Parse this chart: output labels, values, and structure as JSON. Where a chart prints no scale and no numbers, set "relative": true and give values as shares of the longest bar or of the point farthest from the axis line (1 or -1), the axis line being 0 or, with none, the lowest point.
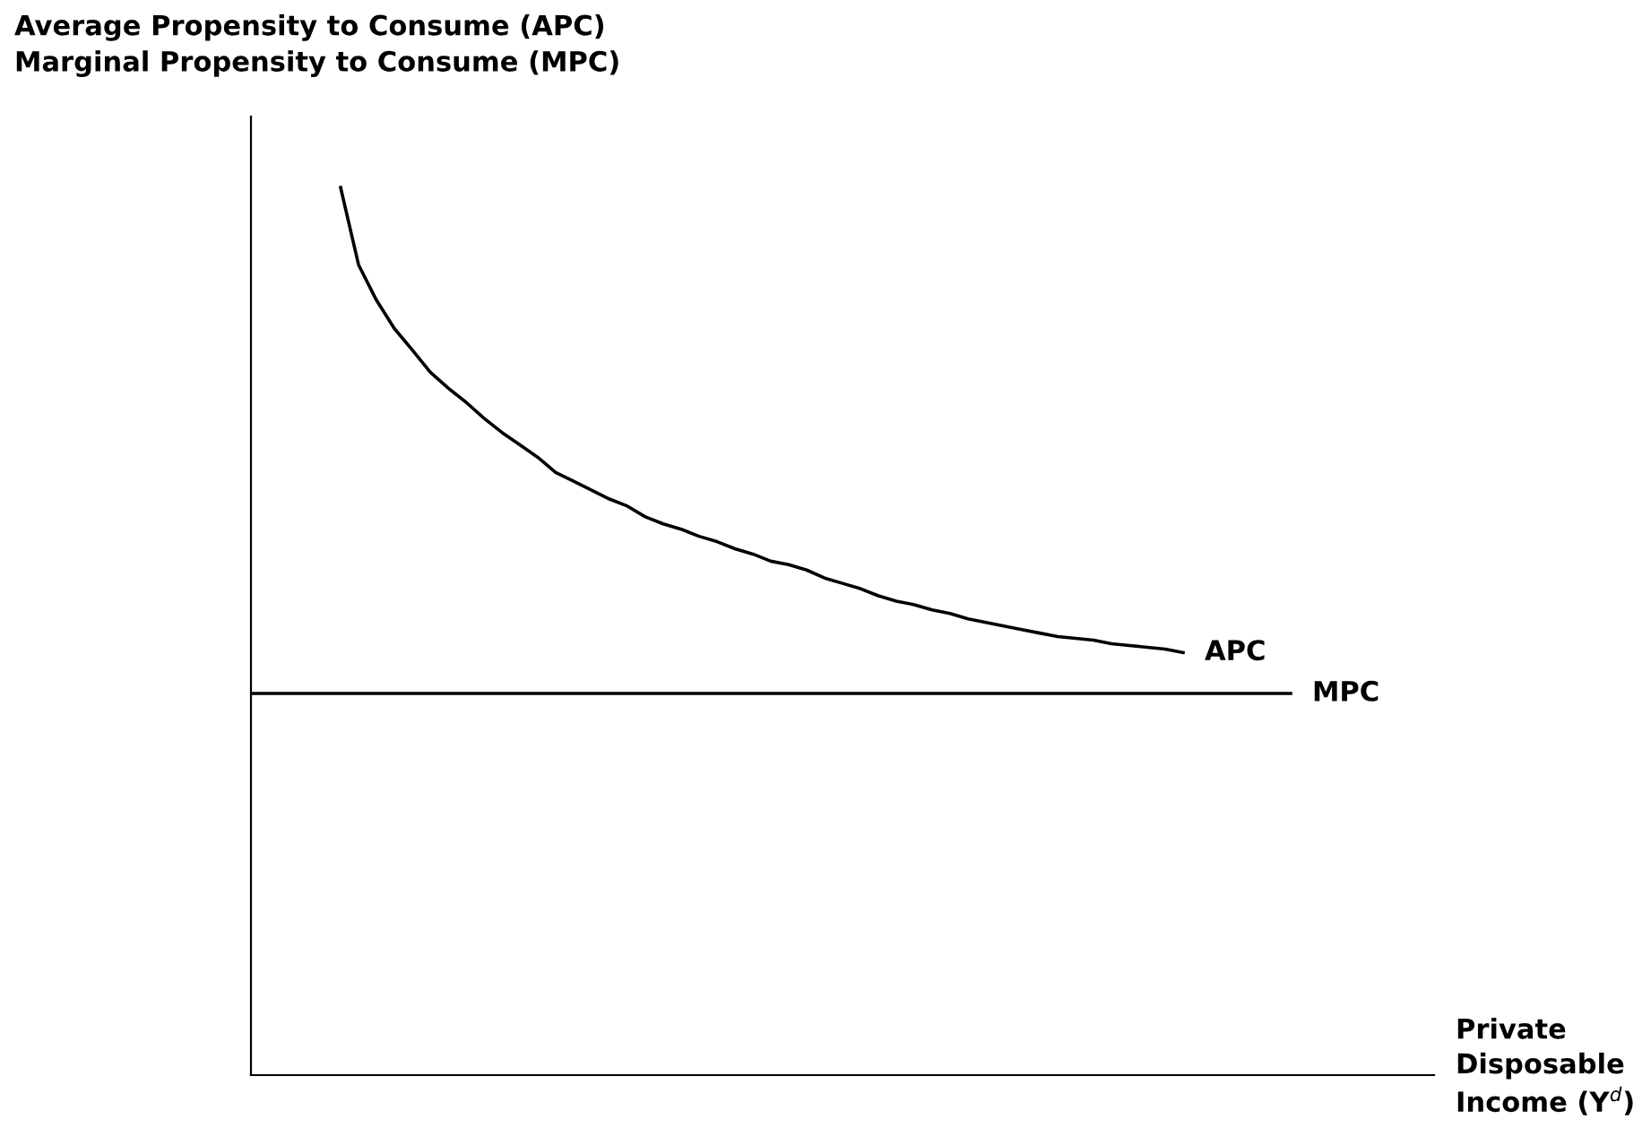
{
  "chart_data": {
    "type": "line",
    "relative": true,
    "legend": false,
    "ylabel": "Average Propensity to Consume (APC)\nMarginal Propensity to Consume (MPC)",
    "xlabel": "Private\nDisposable\nIncome (Y$^{d}$)",
    "categories": [
      null,
      null,
      null,
      null,
      null,
      null,
      null,
      null,
      null,
      null,
      null,
      null,
      null,
      null,
      null,
      null,
      null,
      null,
      null,
      null,
      null,
      null,
      null,
      null,
      null,
      null,
      null,
      null,
      null,
      null,
      null,
      null,
      null,
      null,
      null,
      null,
      null,
      null,
      null,
      null,
      null,
      null,
      null,
      null,
      null,
      null,
      null,
      null,
      null,
      null,
      null,
      null,
      null,
      null,
      null,
      null,
      null,
      null,
      null,
      null,
      null,
      null,
      null,
      null,
      null,
      null,
      null
    ],
    "series": [
      {
        "name": "APC",
        "color": "#000000",
        "values": [
          null,
          null,
          null,
          null,
          null,
          1.0,
          0.913,
          0.873,
          0.841,
          0.817,
          0.792,
          0.774,
          0.758,
          0.74,
          0.724,
          0.71,
          0.696,
          0.679,
          0.669,
          0.659,
          0.649,
          0.641,
          0.629,
          0.621,
          0.615,
          0.607,
          0.601,
          0.593,
          0.587,
          0.579,
          0.575,
          0.569,
          0.56,
          0.554,
          0.548,
          0.54,
          0.534,
          0.53,
          0.524,
          0.52,
          0.514,
          0.51,
          0.506,
          0.502,
          0.498,
          0.494,
          0.492,
          0.49,
          0.486,
          0.484,
          0.482,
          0.48,
          0.476,
          null,
          null,
          null,
          null,
          null,
          null,
          null,
          null,
          null,
          null,
          null,
          null,
          null,
          null
        ]
      },
      {
        "name": "MPC",
        "color": "#000000",
        "values": [
          0.43,
          0.43,
          0.43,
          0.43,
          0.43,
          0.43,
          0.43,
          0.43,
          0.43,
          0.43,
          0.43,
          0.43,
          0.43,
          0.43,
          0.43,
          0.43,
          0.43,
          0.43,
          0.43,
          0.43,
          0.43,
          0.43,
          0.43,
          0.43,
          0.43,
          0.43,
          0.43,
          0.43,
          0.43,
          0.43,
          0.43,
          0.43,
          0.43,
          0.43,
          0.43,
          0.43,
          0.43,
          0.43,
          0.43,
          0.43,
          0.43,
          0.43,
          0.43,
          0.43,
          0.43,
          0.43,
          0.43,
          0.43,
          0.43,
          0.43,
          0.43,
          0.43,
          0.43,
          0.43,
          0.43,
          0.43,
          0.43,
          0.43,
          0.43,
          null,
          null,
          null,
          null,
          null,
          null,
          null,
          null
        ]
      }
    ]
  }
}
